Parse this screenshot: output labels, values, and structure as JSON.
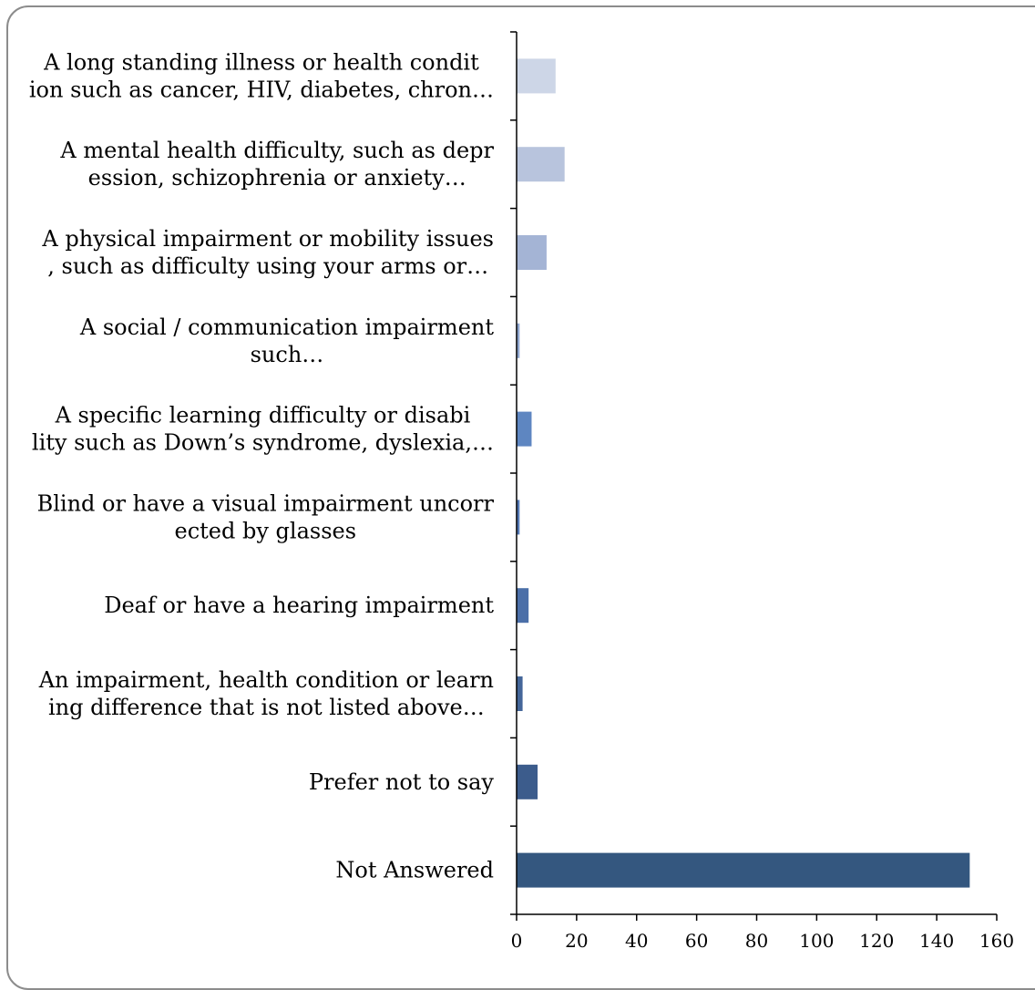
{
  "chart_data": {
    "type": "bar",
    "orientation": "horizontal",
    "categories": [
      [
        "A long standing illness or health condit",
        "ion such as cancer, HIV, diabetes, chron…"
      ],
      [
        "A mental health difficulty, such as depr",
        "ession, schizophrenia or anxiety…"
      ],
      [
        "A physical impairment or mobility issues",
        ", such as difficulty using your arms or…"
      ],
      [
        "A social / communication impairment",
        "such…"
      ],
      [
        "A specific learning difficulty or disabi",
        "lity such as Down’s syndrome, dyslexia,…"
      ],
      [
        "Blind or have a visual impairment uncorr",
        "ected by glasses"
      ],
      [
        "Deaf or have a hearing impairment"
      ],
      [
        "An impairment, health condition or learn",
        "ing difference that is not listed above…"
      ],
      [
        "Prefer not to say"
      ],
      [
        "Not Answered"
      ]
    ],
    "values": [
      13,
      16,
      10,
      1,
      5,
      1,
      4,
      2,
      7,
      151
    ],
    "bar_colors": [
      "#cdd6e7",
      "#b8c4dd",
      "#a4b4d5",
      "#8fa6cf",
      "#5e86c1",
      "#5479b5",
      "#4b6fa8",
      "#446699",
      "#3c5c8c",
      "#34577f"
    ],
    "xlim": [
      0,
      160
    ],
    "xticks": [
      "0",
      "20",
      "40",
      "60",
      "80",
      "100",
      "120",
      "140",
      "160"
    ],
    "title": "",
    "xlabel": "",
    "ylabel": "",
    "grid": false,
    "legend": "none"
  }
}
